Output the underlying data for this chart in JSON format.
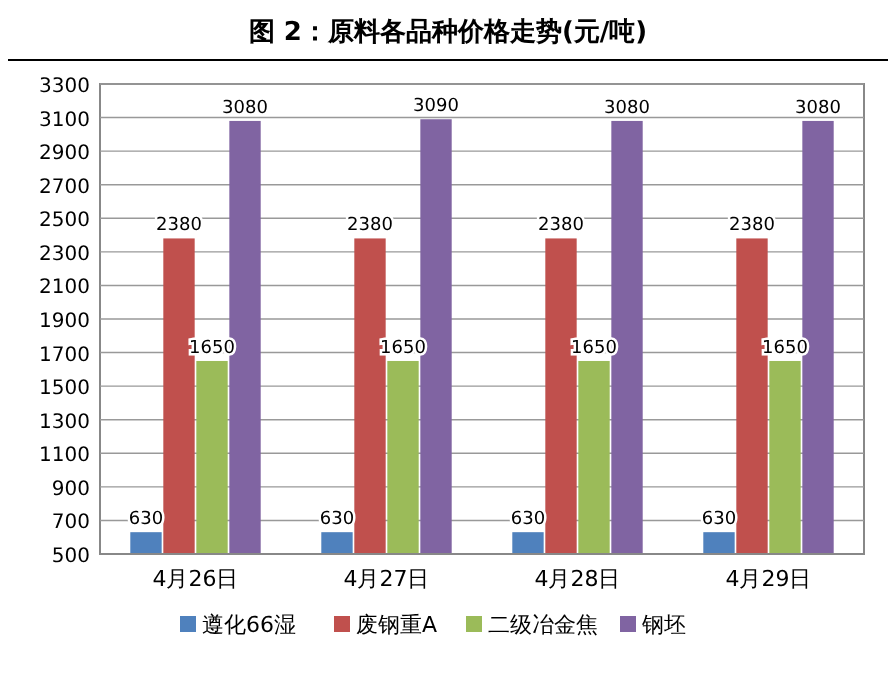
{
  "chart_data": {
    "type": "bar",
    "title": "图 2：原料各品种价格走势(元/吨)",
    "categories": [
      "4月26日",
      "4月27日",
      "4月28日",
      "4月29日"
    ],
    "series": [
      {
        "name": "遵化66湿",
        "color": "#4f81bd",
        "values": [
          630,
          630,
          630,
          630
        ]
      },
      {
        "name": "废钢重A",
        "color": "#c0504d",
        "values": [
          2380,
          2380,
          2380,
          2380
        ]
      },
      {
        "name": "二级冶金焦",
        "color": "#9bbb59",
        "values": [
          1650,
          1650,
          1650,
          1650
        ]
      },
      {
        "name": "钢坯",
        "color": "#8064a2",
        "values": [
          3080,
          3090,
          3080,
          3080
        ]
      }
    ],
    "ylim": [
      500,
      3300
    ],
    "yticks": [
      500,
      700,
      900,
      1100,
      1300,
      1500,
      1700,
      1900,
      2100,
      2300,
      2500,
      2700,
      2900,
      3100,
      3300
    ],
    "grid": "y",
    "data_labels": true,
    "legend": "bottom"
  }
}
